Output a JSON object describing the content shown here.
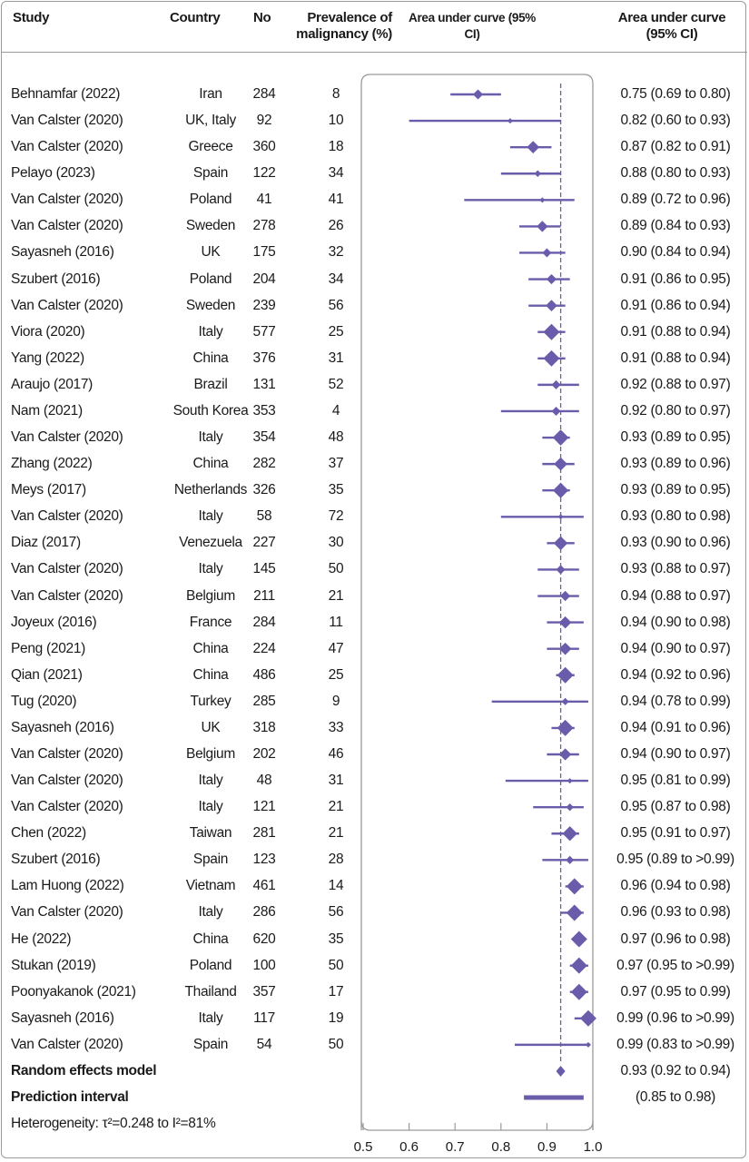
{
  "chart_data": {
    "type": "forest",
    "headers": {
      "study": "Study",
      "country": "Country",
      "n": "No",
      "prevalence": "Prevalence of malignancy (%)",
      "plot": "Area under curve (95% CI)",
      "estimate": "Area under curve (95% CI)"
    },
    "xlim": [
      0.5,
      1.0
    ],
    "xticks": [
      "0.5",
      "0.6",
      "0.7",
      "0.8",
      "0.9",
      "1.0"
    ],
    "reference_line": 0.93,
    "color": "#6b5bab",
    "rows": [
      {
        "study": "Behnamfar (2022)",
        "country": "Iran",
        "n": "284",
        "prev": "8",
        "auc": 0.75,
        "lo": 0.69,
        "hi": 0.8,
        "text": "0.75 (0.69 to 0.80)"
      },
      {
        "study": "Van Calster (2020)",
        "country": "UK, Italy",
        "n": "92",
        "prev": "10",
        "auc": 0.82,
        "lo": 0.6,
        "hi": 0.93,
        "text": "0.82 (0.60 to 0.93)"
      },
      {
        "study": "Van Calster (2020)",
        "country": "Greece",
        "n": "360",
        "prev": "18",
        "auc": 0.87,
        "lo": 0.82,
        "hi": 0.91,
        "text": "0.87 (0.82 to 0.91)"
      },
      {
        "study": "Pelayo (2023)",
        "country": "Spain",
        "n": "122",
        "prev": "34",
        "auc": 0.88,
        "lo": 0.8,
        "hi": 0.93,
        "text": "0.88 (0.80 to 0.93)"
      },
      {
        "study": "Van Calster (2020)",
        "country": "Poland",
        "n": "41",
        "prev": "41",
        "auc": 0.89,
        "lo": 0.72,
        "hi": 0.96,
        "text": "0.89 (0.72 to 0.96)"
      },
      {
        "study": "Van Calster (2020)",
        "country": "Sweden",
        "n": "278",
        "prev": "26",
        "auc": 0.89,
        "lo": 0.84,
        "hi": 0.93,
        "text": "0.89 (0.84 to 0.93)"
      },
      {
        "study": "Sayasneh (2016)",
        "country": "UK",
        "n": "175",
        "prev": "32",
        "auc": 0.9,
        "lo": 0.84,
        "hi": 0.94,
        "text": "0.90 (0.84 to 0.94)"
      },
      {
        "study": "Szubert (2016)",
        "country": "Poland",
        "n": "204",
        "prev": "34",
        "auc": 0.91,
        "lo": 0.86,
        "hi": 0.95,
        "text": "0.91 (0.86 to 0.95)"
      },
      {
        "study": "Van Calster (2020)",
        "country": "Sweden",
        "n": "239",
        "prev": "56",
        "auc": 0.91,
        "lo": 0.86,
        "hi": 0.94,
        "text": "0.91 (0.86 to 0.94)"
      },
      {
        "study": "Viora (2020)",
        "country": "Italy",
        "n": "577",
        "prev": "25",
        "auc": 0.91,
        "lo": 0.88,
        "hi": 0.94,
        "text": "0.91 (0.88 to 0.94)"
      },
      {
        "study": "Yang (2022)",
        "country": "China",
        "n": "376",
        "prev": "31",
        "auc": 0.91,
        "lo": 0.88,
        "hi": 0.94,
        "text": "0.91 (0.88 to 0.94)"
      },
      {
        "study": "Araujo (2017)",
        "country": "Brazil",
        "n": "131",
        "prev": "52",
        "auc": 0.92,
        "lo": 0.88,
        "hi": 0.97,
        "text": "0.92 (0.88 to 0.97)"
      },
      {
        "study": "Nam (2021)",
        "country": "South Korea",
        "n": "353",
        "prev": "4",
        "auc": 0.92,
        "lo": 0.8,
        "hi": 0.97,
        "text": "0.92 (0.80 to 0.97)"
      },
      {
        "study": "Van Calster (2020)",
        "country": "Italy",
        "n": "354",
        "prev": "48",
        "auc": 0.93,
        "lo": 0.89,
        "hi": 0.95,
        "text": "0.93 (0.89 to 0.95)"
      },
      {
        "study": "Zhang (2022)",
        "country": "China",
        "n": "282",
        "prev": "37",
        "auc": 0.93,
        "lo": 0.89,
        "hi": 0.96,
        "text": "0.93 (0.89 to 0.96)"
      },
      {
        "study": "Meys (2017)",
        "country": "Netherlands",
        "n": "326",
        "prev": "35",
        "auc": 0.93,
        "lo": 0.89,
        "hi": 0.95,
        "text": "0.93 (0.89 to 0.95)"
      },
      {
        "study": "Van Calster (2020)",
        "country": "Italy",
        "n": "58",
        "prev": "72",
        "auc": 0.93,
        "lo": 0.8,
        "hi": 0.98,
        "text": "0.93 (0.80 to 0.98)"
      },
      {
        "study": "Diaz (2017)",
        "country": "Venezuela",
        "n": "227",
        "prev": "30",
        "auc": 0.93,
        "lo": 0.9,
        "hi": 0.96,
        "text": "0.93 (0.90 to 0.96)"
      },
      {
        "study": "Van Calster (2020)",
        "country": "Italy",
        "n": "145",
        "prev": "50",
        "auc": 0.93,
        "lo": 0.88,
        "hi": 0.97,
        "text": "0.93 (0.88 to 0.97)"
      },
      {
        "study": "Van Calster (2020)",
        "country": "Belgium",
        "n": "211",
        "prev": "21",
        "auc": 0.94,
        "lo": 0.88,
        "hi": 0.97,
        "text": "0.94 (0.88 to 0.97)"
      },
      {
        "study": "Joyeux (2016)",
        "country": "France",
        "n": "284",
        "prev": "11",
        "auc": 0.94,
        "lo": 0.9,
        "hi": 0.98,
        "text": "0.94 (0.90 to 0.98)"
      },
      {
        "study": "Peng (2021)",
        "country": "China",
        "n": "224",
        "prev": "47",
        "auc": 0.94,
        "lo": 0.9,
        "hi": 0.97,
        "text": "0.94 (0.90 to 0.97)"
      },
      {
        "study": "Qian (2021)",
        "country": "China",
        "n": "486",
        "prev": "25",
        "auc": 0.94,
        "lo": 0.92,
        "hi": 0.96,
        "text": "0.94 (0.92 to 0.96)"
      },
      {
        "study": "Tug (2020)",
        "country": "Turkey",
        "n": "285",
        "prev": "9",
        "auc": 0.94,
        "lo": 0.78,
        "hi": 0.99,
        "text": "0.94 (0.78 to 0.99)"
      },
      {
        "study": "Sayasneh (2016)",
        "country": "UK",
        "n": "318",
        "prev": "33",
        "auc": 0.94,
        "lo": 0.91,
        "hi": 0.96,
        "text": "0.94 (0.91 to 0.96)"
      },
      {
        "study": "Van Calster (2020)",
        "country": "Belgium",
        "n": "202",
        "prev": "46",
        "auc": 0.94,
        "lo": 0.9,
        "hi": 0.97,
        "text": "0.94 (0.90 to 0.97)"
      },
      {
        "study": "Van Calster (2020)",
        "country": "Italy",
        "n": "48",
        "prev": "31",
        "auc": 0.95,
        "lo": 0.81,
        "hi": 0.99,
        "text": "0.95 (0.81 to 0.99)"
      },
      {
        "study": "Van Calster (2020)",
        "country": "Italy",
        "n": "121",
        "prev": "21",
        "auc": 0.95,
        "lo": 0.87,
        "hi": 0.98,
        "text": "0.95 (0.87 to 0.98)"
      },
      {
        "study": "Chen (2022)",
        "country": "Taiwan",
        "n": "281",
        "prev": "21",
        "auc": 0.95,
        "lo": 0.91,
        "hi": 0.97,
        "text": "0.95 (0.91 to 0.97)"
      },
      {
        "study": "Szubert (2016)",
        "country": "Spain",
        "n": "123",
        "prev": "28",
        "auc": 0.95,
        "lo": 0.89,
        "hi": 0.99,
        "text": "0.95 (0.89 to >0.99)"
      },
      {
        "study": "Lam Huong (2022)",
        "country": "Vietnam",
        "n": "461",
        "prev": "14",
        "auc": 0.96,
        "lo": 0.94,
        "hi": 0.98,
        "text": "0.96 (0.94 to 0.98)"
      },
      {
        "study": "Van Calster (2020)",
        "country": "Italy",
        "n": "286",
        "prev": "56",
        "auc": 0.96,
        "lo": 0.93,
        "hi": 0.98,
        "text": "0.96 (0.93 to 0.98)"
      },
      {
        "study": "He (2022)",
        "country": "China",
        "n": "620",
        "prev": "35",
        "auc": 0.97,
        "lo": 0.96,
        "hi": 0.98,
        "text": "0.97 (0.96 to 0.98)"
      },
      {
        "study": "Stukan (2019)",
        "country": "Poland",
        "n": "100",
        "prev": "50",
        "auc": 0.97,
        "lo": 0.95,
        "hi": 0.99,
        "text": "0.97 (0.95 to >0.99)"
      },
      {
        "study": "Poonyakanok (2021)",
        "country": "Thailand",
        "n": "357",
        "prev": "17",
        "auc": 0.97,
        "lo": 0.95,
        "hi": 0.99,
        "text": "0.97 (0.95 to 0.99)"
      },
      {
        "study": "Sayasneh (2016)",
        "country": "Italy",
        "n": "117",
        "prev": "19",
        "auc": 0.99,
        "lo": 0.96,
        "hi": 0.99,
        "text": "0.99 (0.96 to >0.99)"
      },
      {
        "study": "Van Calster (2020)",
        "country": "Spain",
        "n": "54",
        "prev": "50",
        "auc": 0.99,
        "lo": 0.83,
        "hi": 0.99,
        "text": "0.99 (0.83 to >0.99)"
      }
    ],
    "pooled": {
      "label": "Random effects model",
      "auc": 0.93,
      "lo": 0.92,
      "hi": 0.94,
      "text": "0.93 (0.92 to 0.94)"
    },
    "prediction": {
      "label": "Prediction interval",
      "lo": 0.85,
      "hi": 0.98,
      "text": "(0.85 to 0.98)"
    },
    "heterogeneity": "Heterogeneity: τ²=0.248 to I²=81%"
  }
}
